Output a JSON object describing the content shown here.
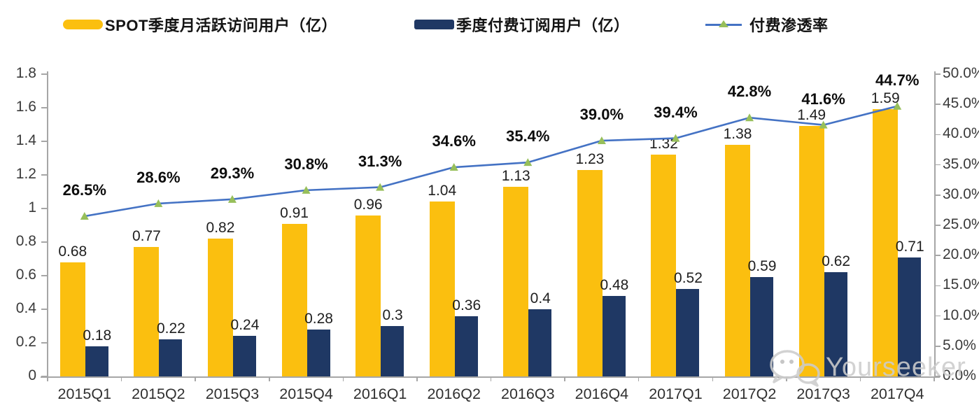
{
  "legend": [
    {
      "label": "SPOT季度月活跃访问用户（亿）",
      "type": "bar",
      "color": "#FBBF0F"
    },
    {
      "label": "季度付费订阅用户（亿）",
      "type": "bar",
      "color": "#1F3864"
    },
    {
      "label": "付费渗透率",
      "type": "line",
      "color": "#4472C4",
      "marker_color": "#97BF5A"
    }
  ],
  "chart_data": {
    "type": "bar+line",
    "categories": [
      "2015Q1",
      "2015Q2",
      "2015Q3",
      "2015Q4",
      "2016Q1",
      "2016Q2",
      "2016Q3",
      "2016Q4",
      "2017Q1",
      "2017Q2",
      "2017Q3",
      "2017Q4"
    ],
    "series": [
      {
        "name": "SPOT季度月活跃访问用户（亿）",
        "type": "bar",
        "axis": "left",
        "color": "#FBBF0F",
        "values": [
          0.68,
          0.77,
          0.82,
          0.91,
          0.96,
          1.04,
          1.13,
          1.23,
          1.32,
          1.38,
          1.49,
          1.59
        ],
        "labels": [
          "0.68",
          "0.77",
          "0.82",
          "0.91",
          "0.96",
          "1.04",
          "1.13",
          "1.23",
          "1.32",
          "1.38",
          "1.49",
          "1.59"
        ]
      },
      {
        "name": "季度付费订阅用户（亿）",
        "type": "bar",
        "axis": "left",
        "color": "#1F3864",
        "values": [
          0.18,
          0.22,
          0.24,
          0.28,
          0.3,
          0.36,
          0.4,
          0.48,
          0.52,
          0.59,
          0.62,
          0.71
        ],
        "labels": [
          "0.18",
          "0.22",
          "0.24",
          "0.28",
          "0.3",
          "0.36",
          "0.4",
          "0.48",
          "0.52",
          "0.59",
          "0.62",
          "0.71"
        ]
      },
      {
        "name": "付费渗透率",
        "type": "line",
        "axis": "right",
        "color": "#4472C4",
        "marker": "triangle",
        "marker_color": "#97BF5A",
        "values": [
          26.5,
          28.6,
          29.3,
          30.8,
          31.3,
          34.6,
          35.4,
          39.0,
          39.4,
          42.8,
          41.6,
          44.7
        ],
        "labels": [
          "26.5%",
          "28.6%",
          "29.3%",
          "30.8%",
          "31.3%",
          "34.6%",
          "35.4%",
          "39.0%",
          "39.4%",
          "42.8%",
          "41.6%",
          "44.7%"
        ]
      }
    ],
    "left_axis": {
      "min": 0,
      "max": 1.8,
      "tick_labels": [
        "0",
        "0.2",
        "0.4",
        "0.6",
        "0.8",
        "1",
        "1.2",
        "1.4",
        "1.6",
        "1.8"
      ]
    },
    "right_axis": {
      "min": 0,
      "max": 50,
      "tick_labels": [
        "0.0%",
        "5.0%",
        "10.0%",
        "15.0%",
        "20.0%",
        "25.0%",
        "30.0%",
        "35.0%",
        "40.0%",
        "45.0%",
        "50.0%"
      ]
    },
    "grid": false,
    "legend_position": "top"
  },
  "watermark": {
    "text": "Yourseeker",
    "icon": "wechat-bubbles-icon",
    "color": "#cccccc"
  }
}
